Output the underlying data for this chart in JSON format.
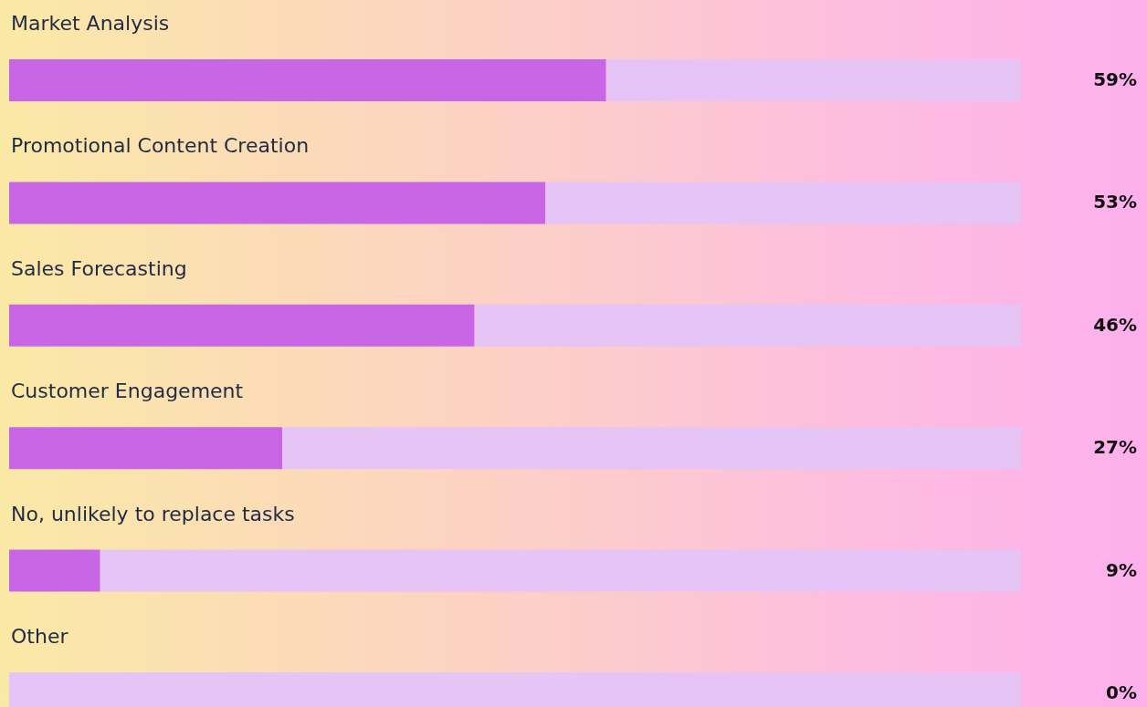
{
  "chart_data": {
    "type": "bar",
    "orientation": "horizontal",
    "stacked": true,
    "categories": [
      "Market Analysis",
      "Promotional Content Creation",
      "Sales Forecasting",
      "Customer Engagement",
      "No, unlikely to replace tasks",
      "Other"
    ],
    "series": [
      {
        "color": "#c866e6",
        "values": [
          59,
          53,
          46,
          27,
          9,
          0
        ],
        "value_labels": [
          "59%",
          "53%",
          "46%",
          "27%",
          "9%",
          "0%"
        ]
      },
      {
        "color": "#e6c4f5",
        "values": [
          41,
          47,
          54,
          73,
          91,
          100
        ]
      }
    ],
    "xlim": [
      0,
      100
    ]
  }
}
